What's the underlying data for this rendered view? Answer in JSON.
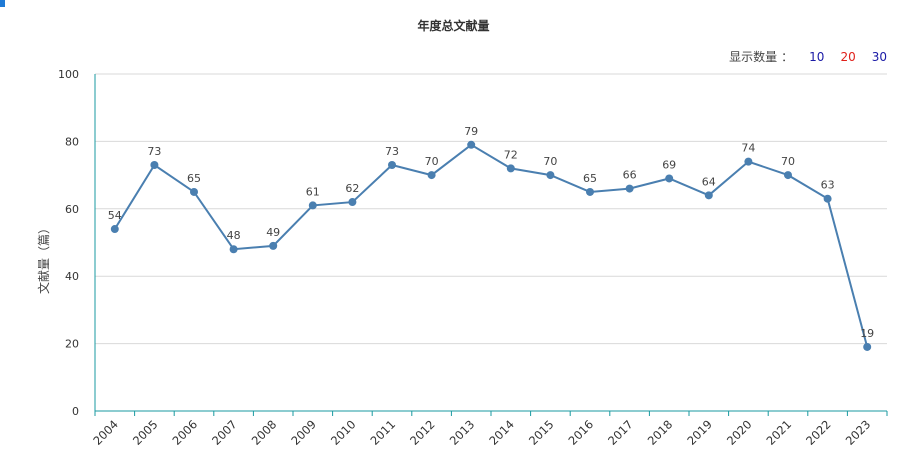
{
  "chart_data": {
    "type": "line",
    "title": "年度总文献量",
    "ylabel": "文献量（篇）",
    "xlabel": "",
    "categories": [
      "2004",
      "2005",
      "2006",
      "2007",
      "2008",
      "2009",
      "2010",
      "2011",
      "2012",
      "2013",
      "2014",
      "2015",
      "2016",
      "2017",
      "2018",
      "2019",
      "2020",
      "2021",
      "2022",
      "2023"
    ],
    "values": [
      54,
      73,
      65,
      48,
      49,
      61,
      62,
      73,
      70,
      79,
      72,
      70,
      65,
      66,
      69,
      64,
      74,
      70,
      63,
      19
    ],
    "ylim": [
      0,
      100
    ],
    "yticks": [
      0,
      20,
      40,
      60,
      80,
      100
    ],
    "grid": true,
    "line_color": "#4a7fb0",
    "axis_color": "#1a9aa0"
  },
  "controls": {
    "label": "显示数量",
    "colon": "：",
    "options": [
      {
        "text": "10",
        "color": "#1a1aa6"
      },
      {
        "text": "20",
        "color": "#e0201a"
      },
      {
        "text": "30",
        "color": "#1a1aa6"
      }
    ]
  }
}
